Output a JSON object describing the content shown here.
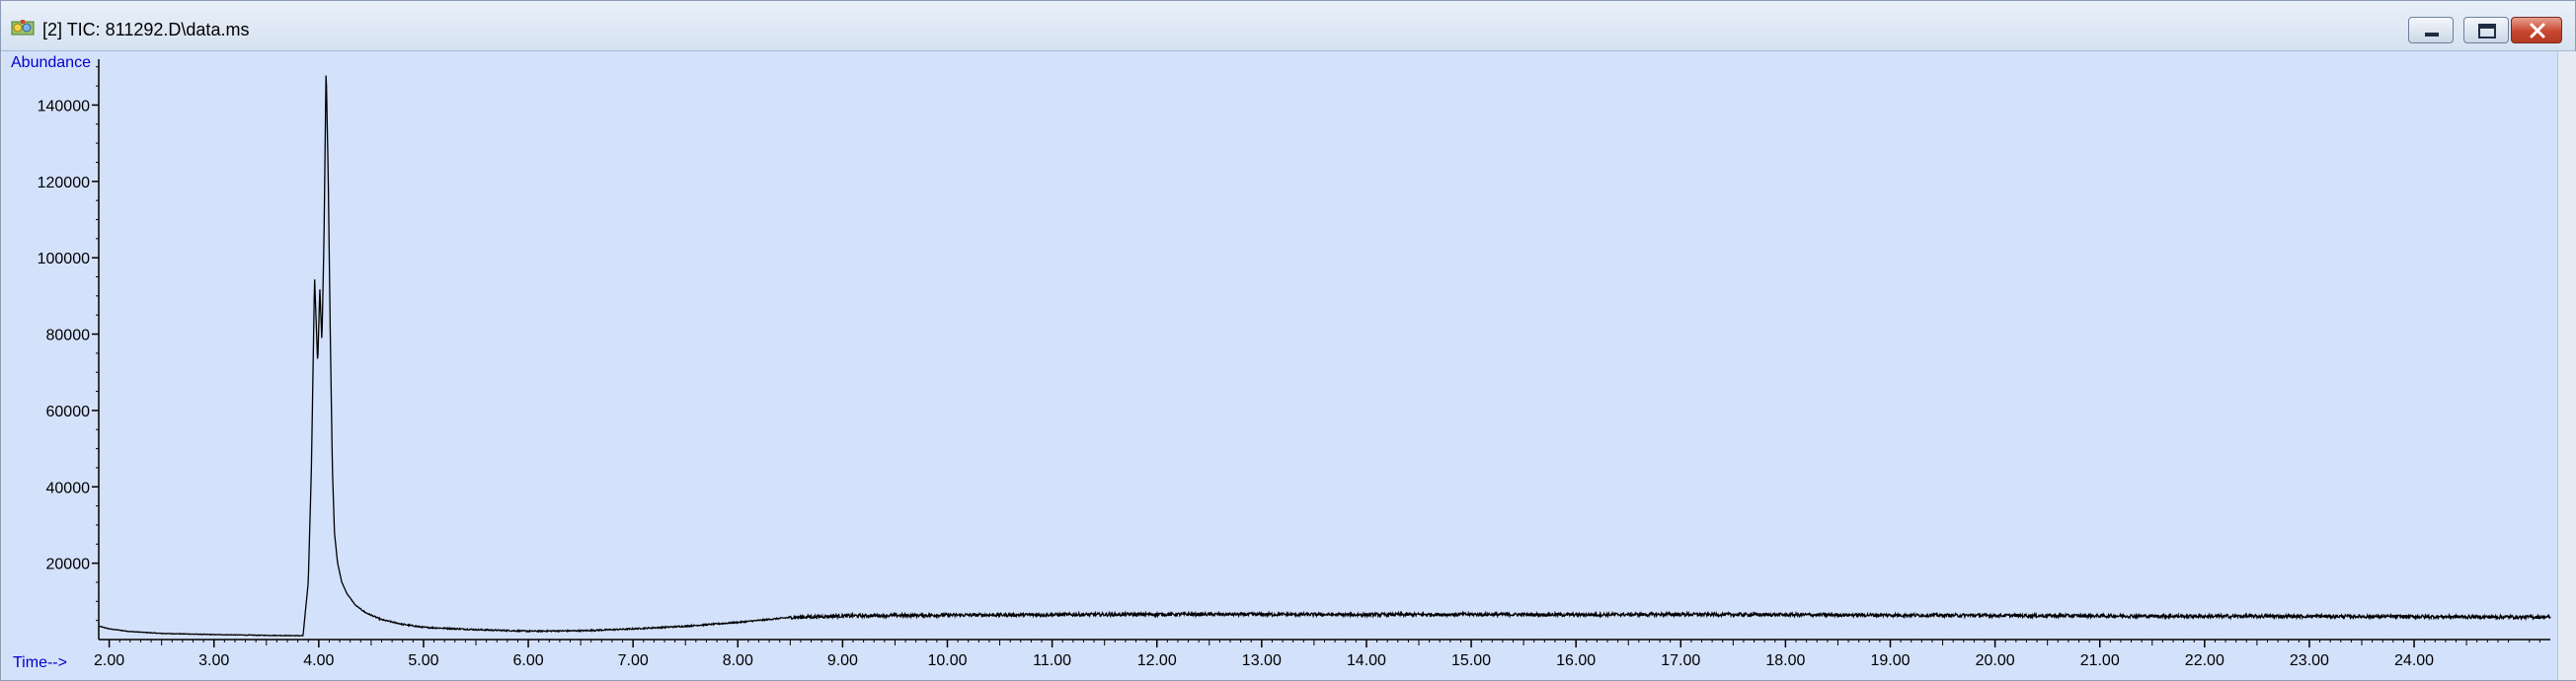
{
  "window": {
    "title": "[2] TIC: 811292.D\\data.ms",
    "icon": "chromatogram-app-icon",
    "buttons": {
      "minimize": "minimize-icon",
      "maximize": "maximize-icon",
      "close": "close-icon"
    }
  },
  "colors": {
    "plot_background": "#d4e1fb",
    "trace": "#000000",
    "axis_title": "#0000cc"
  },
  "chart_data": {
    "type": "line",
    "ylabel": "Abundance",
    "xlabel": "Time-->",
    "xlim": [
      1.9,
      25.3
    ],
    "ylim": [
      0,
      152000
    ],
    "x_ticks": [
      2,
      3,
      4,
      5,
      6,
      7,
      8,
      9,
      10,
      11,
      12,
      13,
      14,
      15,
      16,
      17,
      18,
      19,
      20,
      21,
      22,
      23,
      24
    ],
    "x_tick_labels": [
      "2.00",
      "3.00",
      "4.00",
      "5.00",
      "6.00",
      "7.00",
      "8.00",
      "9.00",
      "10.00",
      "11.00",
      "12.00",
      "13.00",
      "14.00",
      "15.00",
      "16.00",
      "17.00",
      "18.00",
      "19.00",
      "20.00",
      "21.00",
      "22.00",
      "23.00",
      "24.00"
    ],
    "y_ticks": [
      20000,
      40000,
      60000,
      80000,
      100000,
      120000,
      140000
    ],
    "y_tick_labels": [
      "20000",
      "40000",
      "60000",
      "80000",
      "100000",
      "120000",
      "140000"
    ],
    "grid": false,
    "series": [
      {
        "x": [
          1.9,
          2.0,
          2.2,
          2.5,
          3.0,
          3.5,
          3.85,
          3.9,
          3.93,
          3.96,
          3.99,
          4.01,
          4.03,
          4.05,
          4.07,
          4.09,
          4.11,
          4.13,
          4.15,
          4.18,
          4.22,
          4.27,
          4.35,
          4.45,
          4.6,
          4.8,
          5.0,
          5.5,
          6.0,
          6.5,
          7.0,
          7.5,
          8.0,
          8.5,
          9.0,
          10.0,
          11.0,
          12.0,
          13.0,
          14.0,
          15.0,
          16.0,
          17.0,
          18.0,
          19.0,
          20.0,
          21.0,
          22.0,
          23.0,
          24.0,
          25.0,
          25.3
        ],
        "y": [
          3500,
          2800,
          2100,
          1600,
          1300,
          1100,
          1000,
          15000,
          45000,
          95000,
          72000,
          92000,
          78000,
          105000,
          150000,
          122000,
          80000,
          45000,
          28000,
          20000,
          15000,
          12000,
          9000,
          7000,
          5200,
          4000,
          3200,
          2600,
          2200,
          2300,
          2800,
          3500,
          4500,
          5800,
          6200,
          6400,
          6500,
          6600,
          6600,
          6500,
          6600,
          6500,
          6600,
          6500,
          6400,
          6300,
          6200,
          6100,
          6100,
          6000,
          5900,
          5900
        ]
      }
    ]
  }
}
